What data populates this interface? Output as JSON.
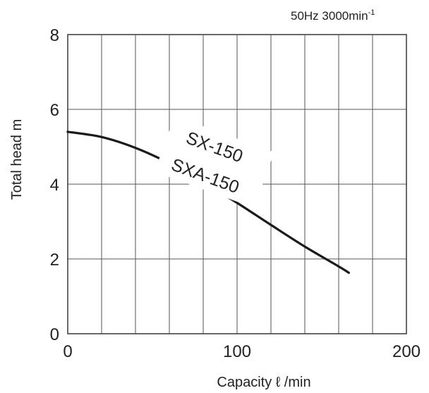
{
  "chart_data": {
    "type": "line",
    "title": "",
    "annotation_text": "50Hz 3000min",
    "annotation_superscript": "-1",
    "xlabel": "Capacity  ℓ /min",
    "ylabel": "Total head  m",
    "xlim": [
      0,
      200
    ],
    "ylim": [
      0,
      8
    ],
    "x_ticks": [
      0,
      100,
      200
    ],
    "x_tick_labels": [
      "0",
      "100",
      "200"
    ],
    "y_ticks": [
      0,
      2,
      4,
      6,
      8
    ],
    "y_tick_labels": [
      "0",
      "2",
      "4",
      "6",
      "8"
    ],
    "grid": true,
    "grid_minor_x_step": 20,
    "curve_labels": [
      "SX-150",
      "SXA-150"
    ],
    "series": [
      {
        "x": [
          0,
          20,
          40,
          60,
          80,
          100,
          120,
          140,
          160,
          166
        ],
        "y": [
          5.4,
          5.26,
          4.97,
          4.56,
          4.06,
          3.5,
          2.91,
          2.33,
          1.8,
          1.63
        ]
      }
    ],
    "colors": {
      "curve": "#1a1a1a",
      "grid": "#555555",
      "frame": "#444444"
    }
  }
}
